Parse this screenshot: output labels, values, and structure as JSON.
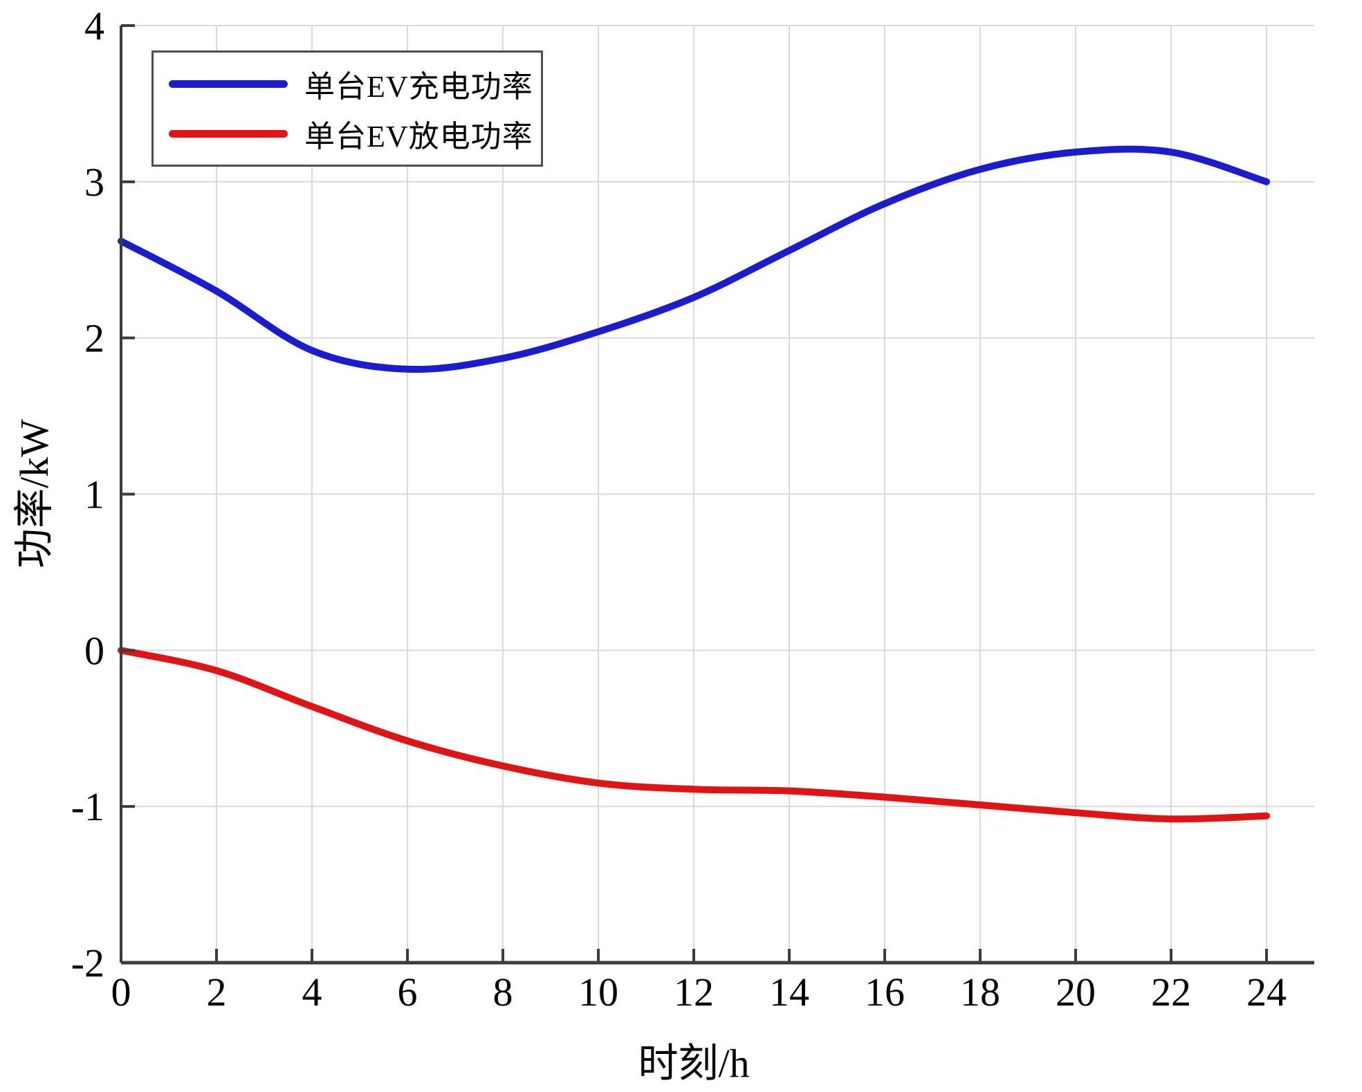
{
  "figure": {
    "background": "#ffffff"
  },
  "chart_data": {
    "type": "line",
    "title": "",
    "xlabel": "时刻/h",
    "ylabel": "功率/kW",
    "xlim": [
      0,
      25
    ],
    "ylim": [
      -2,
      4
    ],
    "x_ticks": [
      0,
      2,
      4,
      6,
      8,
      10,
      12,
      14,
      16,
      18,
      20,
      22,
      24
    ],
    "y_ticks": [
      -2,
      -1,
      0,
      1,
      2,
      3,
      4
    ],
    "grid": true,
    "legend_position": "top-left",
    "x": [
      0,
      2,
      4,
      6,
      8,
      10,
      12,
      14,
      16,
      18,
      20,
      22,
      24
    ],
    "series": [
      {
        "name": "单台EV充电功率",
        "color": "#1b1bd0",
        "values": [
          2.62,
          2.3,
          1.92,
          1.8,
          1.87,
          2.04,
          2.26,
          2.56,
          2.86,
          3.08,
          3.19,
          3.19,
          3.0
        ]
      },
      {
        "name": "单台EV放电功率",
        "color": "#e01414",
        "values": [
          0.0,
          -0.13,
          -0.36,
          -0.58,
          -0.74,
          -0.85,
          -0.89,
          -0.9,
          -0.94,
          -0.99,
          -1.04,
          -1.08,
          -1.06
        ]
      }
    ]
  },
  "style_colors": {
    "grid": "#d9d9d9",
    "axis": "#3c3c3c",
    "tick_label": "#000000",
    "legend_border": "#4d4d4d"
  }
}
